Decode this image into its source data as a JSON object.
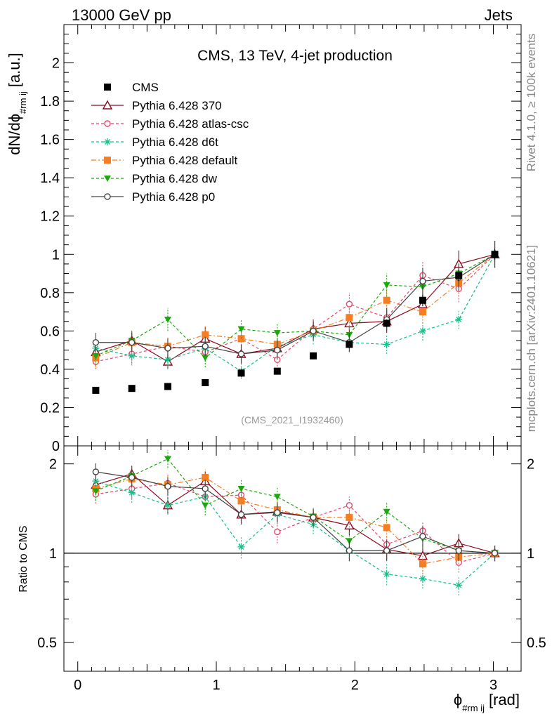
{
  "header": {
    "energy_label": "13000 GeV pp",
    "category_label": "Jets"
  },
  "side_labels": {
    "rivet": "Rivet 4.1.0, ≥ 100k events",
    "mcplots": "mcplots.cern.ch [arXiv:2401.10621]"
  },
  "chart_data": [
    {
      "type": "scatter",
      "panel": "main",
      "title": "CMS, 13 TeV, 4-jet production",
      "watermark": "(CMS_2021_I1932460)",
      "ylabel": "dN/dϕ",
      "ylabel_sub": "#rm ij",
      "ylabel_unit": "[a.u.]",
      "xlim": [
        -0.1,
        3.2
      ],
      "ylim": [
        0,
        2.2
      ],
      "y_ticks": [
        "0",
        "0.2",
        "0.4",
        "0.6",
        "0.8",
        "1",
        "1.2",
        "1.4",
        "1.6",
        "1.8",
        "2"
      ],
      "x": [
        0.13,
        0.39,
        0.65,
        0.92,
        1.18,
        1.44,
        1.7,
        1.96,
        2.23,
        2.49,
        2.75,
        3.01
      ],
      "series": [
        {
          "name": "CMS",
          "color": "#000000",
          "marker": "square",
          "line": "none",
          "values": [
            0.29,
            0.3,
            0.31,
            0.33,
            0.38,
            0.39,
            0.47,
            0.53,
            0.64,
            0.76,
            0.89,
            1.0
          ],
          "errors": [
            0.01,
            0.01,
            0.01,
            0.01,
            0.02,
            0.01,
            0.01,
            0.02,
            0.02,
            0.03,
            0.03,
            0.03
          ]
        },
        {
          "name": "Pythia 6.428 370",
          "color": "#8b0a1e",
          "marker": "triangle-open",
          "line": "solid",
          "values": [
            0.49,
            0.55,
            0.44,
            0.56,
            0.48,
            0.51,
            0.61,
            0.64,
            0.65,
            0.74,
            0.95,
            1.0
          ],
          "errors": [
            0.05,
            0.05,
            0.04,
            0.06,
            0.05,
            0.05,
            0.05,
            0.05,
            0.06,
            0.06,
            0.07,
            0.07
          ]
        },
        {
          "name": "Pythia 6.428 atlas-csc",
          "color": "#e8436b",
          "marker": "circle-open",
          "line": "dashed",
          "values": [
            0.44,
            0.48,
            0.52,
            0.49,
            0.56,
            0.45,
            0.61,
            0.74,
            0.67,
            0.89,
            0.82,
            1.0
          ],
          "errors": [
            0.04,
            0.05,
            0.05,
            0.05,
            0.05,
            0.05,
            0.05,
            0.06,
            0.06,
            0.07,
            0.07,
            0.07
          ]
        },
        {
          "name": "Pythia 6.428 d6t",
          "color": "#11c28a",
          "marker": "star",
          "line": "dashed",
          "values": [
            0.51,
            0.47,
            0.45,
            0.51,
            0.39,
            0.52,
            0.58,
            0.54,
            0.53,
            0.6,
            0.66,
            1.0
          ],
          "errors": [
            0.05,
            0.05,
            0.05,
            0.05,
            0.04,
            0.05,
            0.05,
            0.05,
            0.05,
            0.05,
            0.05,
            0.07
          ]
        },
        {
          "name": "Pythia 6.428 default",
          "color": "#f57e22",
          "marker": "square",
          "line": "dashdot",
          "values": [
            0.46,
            0.54,
            0.52,
            0.58,
            0.56,
            0.53,
            0.6,
            0.67,
            0.76,
            0.7,
            0.85,
            1.0
          ],
          "errors": [
            0.05,
            0.05,
            0.05,
            0.05,
            0.05,
            0.05,
            0.05,
            0.06,
            0.06,
            0.06,
            0.07,
            0.07
          ]
        },
        {
          "name": "Pythia 6.428 dw",
          "color": "#1ca70f",
          "marker": "triangle-down",
          "line": "dashed",
          "values": [
            0.47,
            0.55,
            0.66,
            0.46,
            0.61,
            0.59,
            0.6,
            0.58,
            0.84,
            0.83,
            0.9,
            1.0
          ],
          "errors": [
            0.05,
            0.05,
            0.06,
            0.05,
            0.05,
            0.05,
            0.05,
            0.05,
            0.06,
            0.07,
            0.07,
            0.07
          ]
        },
        {
          "name": "Pythia 6.428 p0",
          "color": "#444444",
          "marker": "circle-open",
          "line": "solid",
          "values": [
            0.54,
            0.54,
            0.51,
            0.52,
            0.48,
            0.5,
            0.6,
            0.54,
            0.66,
            0.86,
            0.88,
            1.0
          ],
          "errors": [
            0.05,
            0.05,
            0.05,
            0.05,
            0.05,
            0.05,
            0.05,
            0.05,
            0.06,
            0.07,
            0.07,
            0.07
          ]
        }
      ]
    },
    {
      "type": "scatter",
      "panel": "ratio",
      "ylabel": "Ratio to CMS",
      "xlabel": "ϕ",
      "xlabel_sub": "#rm ij",
      "xlabel_unit": "[rad]",
      "xlim": [
        -0.1,
        3.2
      ],
      "ylim": [
        0.4,
        2.3
      ],
      "y_scale": "log",
      "reference_line": 1,
      "y_ticks": [
        "0.5",
        "1",
        "2"
      ],
      "x_ticks": [
        "0",
        "1",
        "2",
        "3"
      ],
      "x": [
        0.13,
        0.39,
        0.65,
        0.92,
        1.18,
        1.44,
        1.7,
        1.96,
        2.23,
        2.49,
        2.75,
        3.01
      ],
      "series": [
        {
          "name": "Pythia 6.428 370",
          "values": [
            1.7,
            1.85,
            1.45,
            1.75,
            1.35,
            1.38,
            1.32,
            1.24,
            1.03,
            0.98,
            1.08,
            1.0
          ],
          "errors": [
            0.12,
            0.12,
            0.1,
            0.13,
            0.1,
            0.1,
            0.09,
            0.09,
            0.08,
            0.08,
            0.08,
            0.06
          ]
        },
        {
          "name": "Pythia 6.428 atlas-csc",
          "values": [
            1.58,
            1.65,
            1.72,
            1.55,
            1.57,
            1.18,
            1.32,
            1.45,
            1.07,
            1.19,
            0.93,
            1.0
          ],
          "errors": [
            0.11,
            0.12,
            0.12,
            0.12,
            0.11,
            0.1,
            0.09,
            0.1,
            0.08,
            0.09,
            0.07,
            0.06
          ]
        },
        {
          "name": "Pythia 6.428 d6t",
          "values": [
            1.75,
            1.6,
            1.45,
            1.55,
            1.05,
            1.35,
            1.25,
            1.02,
            0.85,
            0.82,
            0.78,
            1.0
          ],
          "errors": [
            0.12,
            0.12,
            0.1,
            0.12,
            0.09,
            0.1,
            0.09,
            0.08,
            0.07,
            0.06,
            0.06,
            0.06
          ]
        },
        {
          "name": "Pythia 6.428 default",
          "values": [
            1.65,
            1.78,
            1.7,
            1.8,
            1.5,
            1.4,
            1.32,
            1.32,
            1.22,
            0.92,
            0.97,
            1.0
          ],
          "errors": [
            0.12,
            0.12,
            0.12,
            0.12,
            0.11,
            0.1,
            0.09,
            0.1,
            0.09,
            0.07,
            0.07,
            0.06
          ]
        },
        {
          "name": "Pythia 6.428 dw",
          "values": [
            1.62,
            1.82,
            2.08,
            1.45,
            1.65,
            1.55,
            1.33,
            1.1,
            1.38,
            1.12,
            1.02,
            1.0
          ],
          "errors": [
            0.12,
            0.13,
            0.14,
            0.11,
            0.12,
            0.11,
            0.09,
            0.08,
            0.1,
            0.08,
            0.08,
            0.06
          ]
        },
        {
          "name": "Pythia 6.428 p0",
          "values": [
            1.88,
            1.8,
            1.68,
            1.65,
            1.35,
            1.37,
            1.32,
            1.02,
            1.02,
            1.14,
            1.02,
            1.0
          ],
          "errors": [
            0.13,
            0.13,
            0.12,
            0.12,
            0.1,
            0.1,
            0.09,
            0.08,
            0.08,
            0.09,
            0.08,
            0.06
          ]
        }
      ]
    }
  ]
}
